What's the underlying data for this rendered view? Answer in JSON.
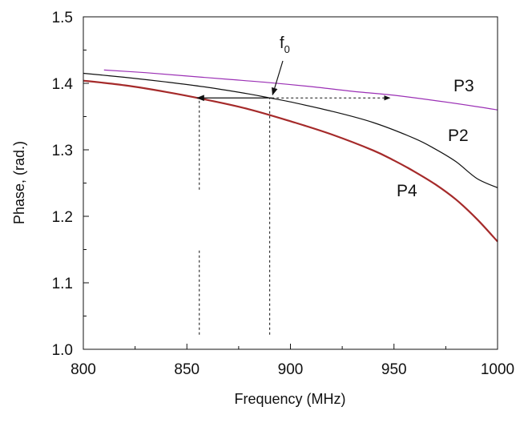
{
  "chart_data": {
    "type": "line",
    "xlabel": "Frequency (MHz)",
    "ylabel": "Phase, (rad.)",
    "xlim": [
      800,
      1000
    ],
    "ylim": [
      1.0,
      1.5
    ],
    "x_ticks": [
      800,
      850,
      900,
      950,
      1000
    ],
    "x_tick_labels": [
      "800",
      "850",
      "900",
      "950",
      "1000"
    ],
    "y_ticks": [
      1.0,
      1.1,
      1.2,
      1.3,
      1.4,
      1.5
    ],
    "y_tick_labels": [
      "1.0",
      "1.1",
      "1.2",
      "1.3",
      "1.4",
      "1.5"
    ],
    "grid": false,
    "series": [
      {
        "name": "P3",
        "label": "P3",
        "color": "#9b30b5",
        "x": [
          810,
          830,
          850,
          870,
          890,
          910,
          930,
          950,
          970,
          990,
          1000
        ],
        "y": [
          1.42,
          1.416,
          1.411,
          1.406,
          1.401,
          1.395,
          1.388,
          1.382,
          1.374,
          1.365,
          1.36
        ]
      },
      {
        "name": "P2",
        "label": "P2",
        "color": "#111111",
        "x": [
          800,
          820,
          840,
          860,
          880,
          890,
          900,
          920,
          940,
          960,
          970,
          980,
          990,
          1000
        ],
        "y": [
          1.415,
          1.409,
          1.402,
          1.394,
          1.384,
          1.378,
          1.372,
          1.358,
          1.341,
          1.317,
          1.301,
          1.282,
          1.257,
          1.243
        ]
      },
      {
        "name": "P4",
        "label": "P4",
        "color": "#a52a2a",
        "x": [
          800,
          820,
          840,
          860,
          880,
          900,
          920,
          940,
          950,
          960,
          970,
          980,
          990,
          1000
        ],
        "y": [
          1.404,
          1.397,
          1.387,
          1.375,
          1.361,
          1.343,
          1.323,
          1.299,
          1.284,
          1.267,
          1.248,
          1.225,
          1.196,
          1.162
        ]
      }
    ],
    "annotations": {
      "f0": {
        "main": "f",
        "subscript": "0",
        "x": 891,
        "y": 1.378
      },
      "arrow_left": {
        "x_from": 891,
        "x_to": 855,
        "y": 1.378
      },
      "arrow_right": {
        "x_from": 891,
        "x_to": 948,
        "y": 1.378
      },
      "vline_f0": {
        "x": 890,
        "y_from": 1.022,
        "y_to": 1.378
      },
      "vline_left": {
        "x": 856,
        "segments": [
          [
            1.022,
            1.152
          ],
          [
            1.24,
            1.378
          ]
        ]
      }
    }
  }
}
